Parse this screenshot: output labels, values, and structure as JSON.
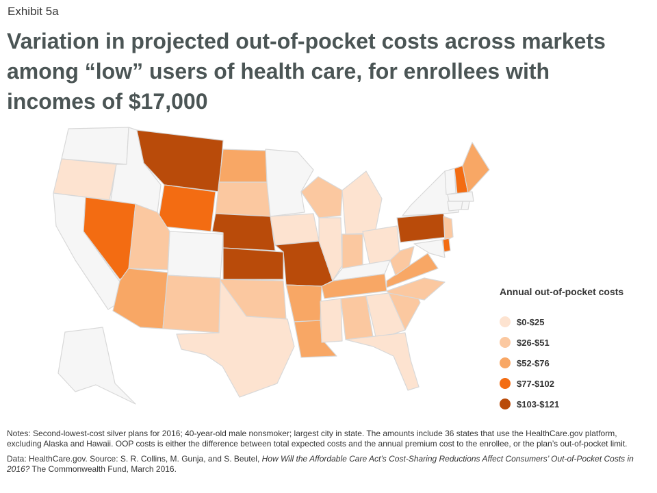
{
  "header": {
    "exhibit": "Exhibit 5a",
    "title": "Variation in projected out-of-pocket costs across markets among “low” users of health care, for enrollees with incomes of $17,000"
  },
  "legend": {
    "title": "Annual out-of-pocket costs",
    "items": [
      {
        "label": "$0-$25",
        "color": "#fde3d0"
      },
      {
        "label": "$26-$51",
        "color": "#fbc8a0"
      },
      {
        "label": "$52-$76",
        "color": "#f8a765"
      },
      {
        "label": "$77-$102",
        "color": "#f36c12"
      },
      {
        "label": "$103-$121",
        "color": "#b94b0a"
      }
    ],
    "no_data_color": "#f6f6f6"
  },
  "map_data": {
    "states": [
      {
        "name": "WA",
        "bin": null
      },
      {
        "name": "OR",
        "bin": 0
      },
      {
        "name": "CA",
        "bin": null
      },
      {
        "name": "ID",
        "bin": null
      },
      {
        "name": "NV",
        "bin": 3
      },
      {
        "name": "MT",
        "bin": 4
      },
      {
        "name": "WY",
        "bin": 3
      },
      {
        "name": "UT",
        "bin": 1
      },
      {
        "name": "CO",
        "bin": null
      },
      {
        "name": "AZ",
        "bin": 2
      },
      {
        "name": "NM",
        "bin": 1
      },
      {
        "name": "ND",
        "bin": 2
      },
      {
        "name": "SD",
        "bin": 1
      },
      {
        "name": "NE",
        "bin": 4
      },
      {
        "name": "KS",
        "bin": 4
      },
      {
        "name": "OK",
        "bin": 1
      },
      {
        "name": "TX",
        "bin": 0
      },
      {
        "name": "MN",
        "bin": null
      },
      {
        "name": "IA",
        "bin": 0
      },
      {
        "name": "MO",
        "bin": 4
      },
      {
        "name": "AR",
        "bin": 2
      },
      {
        "name": "LA",
        "bin": 2
      },
      {
        "name": "WI",
        "bin": 1
      },
      {
        "name": "IL",
        "bin": 0
      },
      {
        "name": "MI",
        "bin": 0
      },
      {
        "name": "IN",
        "bin": 1
      },
      {
        "name": "OH",
        "bin": 0
      },
      {
        "name": "KY",
        "bin": null
      },
      {
        "name": "TN",
        "bin": 2
      },
      {
        "name": "MS",
        "bin": 0
      },
      {
        "name": "AL",
        "bin": 1
      },
      {
        "name": "GA",
        "bin": 0
      },
      {
        "name": "FL",
        "bin": 0
      },
      {
        "name": "SC",
        "bin": 1
      },
      {
        "name": "NC",
        "bin": 1
      },
      {
        "name": "VA",
        "bin": 2
      },
      {
        "name": "WV",
        "bin": 1
      },
      {
        "name": "PA",
        "bin": 4
      },
      {
        "name": "NY",
        "bin": null
      },
      {
        "name": "NJ",
        "bin": 1
      },
      {
        "name": "DE",
        "bin": 3
      },
      {
        "name": "MD",
        "bin": null
      },
      {
        "name": "VT",
        "bin": null
      },
      {
        "name": "NH",
        "bin": 3
      },
      {
        "name": "ME",
        "bin": 2
      },
      {
        "name": "MA",
        "bin": null
      },
      {
        "name": "CT",
        "bin": null
      },
      {
        "name": "RI",
        "bin": null
      },
      {
        "name": "AK",
        "bin": null
      }
    ]
  },
  "notes": {
    "text": "Notes: Second-lowest-cost silver plans for 2016; 40-year-old male nonsmoker; largest city in state. The amounts include 36 states that use the HealthCare.gov platform, excluding Alaska and Hawaii. OOP costs is either the difference between total expected costs and the annual premium cost to the enrollee, or the plan’s out-of-pocket limit.",
    "data_prefix": "Data: HealthCare.gov. Source: S. R. Collins, M. Gunja, and S. Beutel, ",
    "data_title": "How Will the Affordable Care Act’s Cost-Sharing Reductions Affect Consumers’ Out-of-Pocket Costs in 2016?",
    "data_suffix": " The Commonwealth Fund, March 2016."
  }
}
